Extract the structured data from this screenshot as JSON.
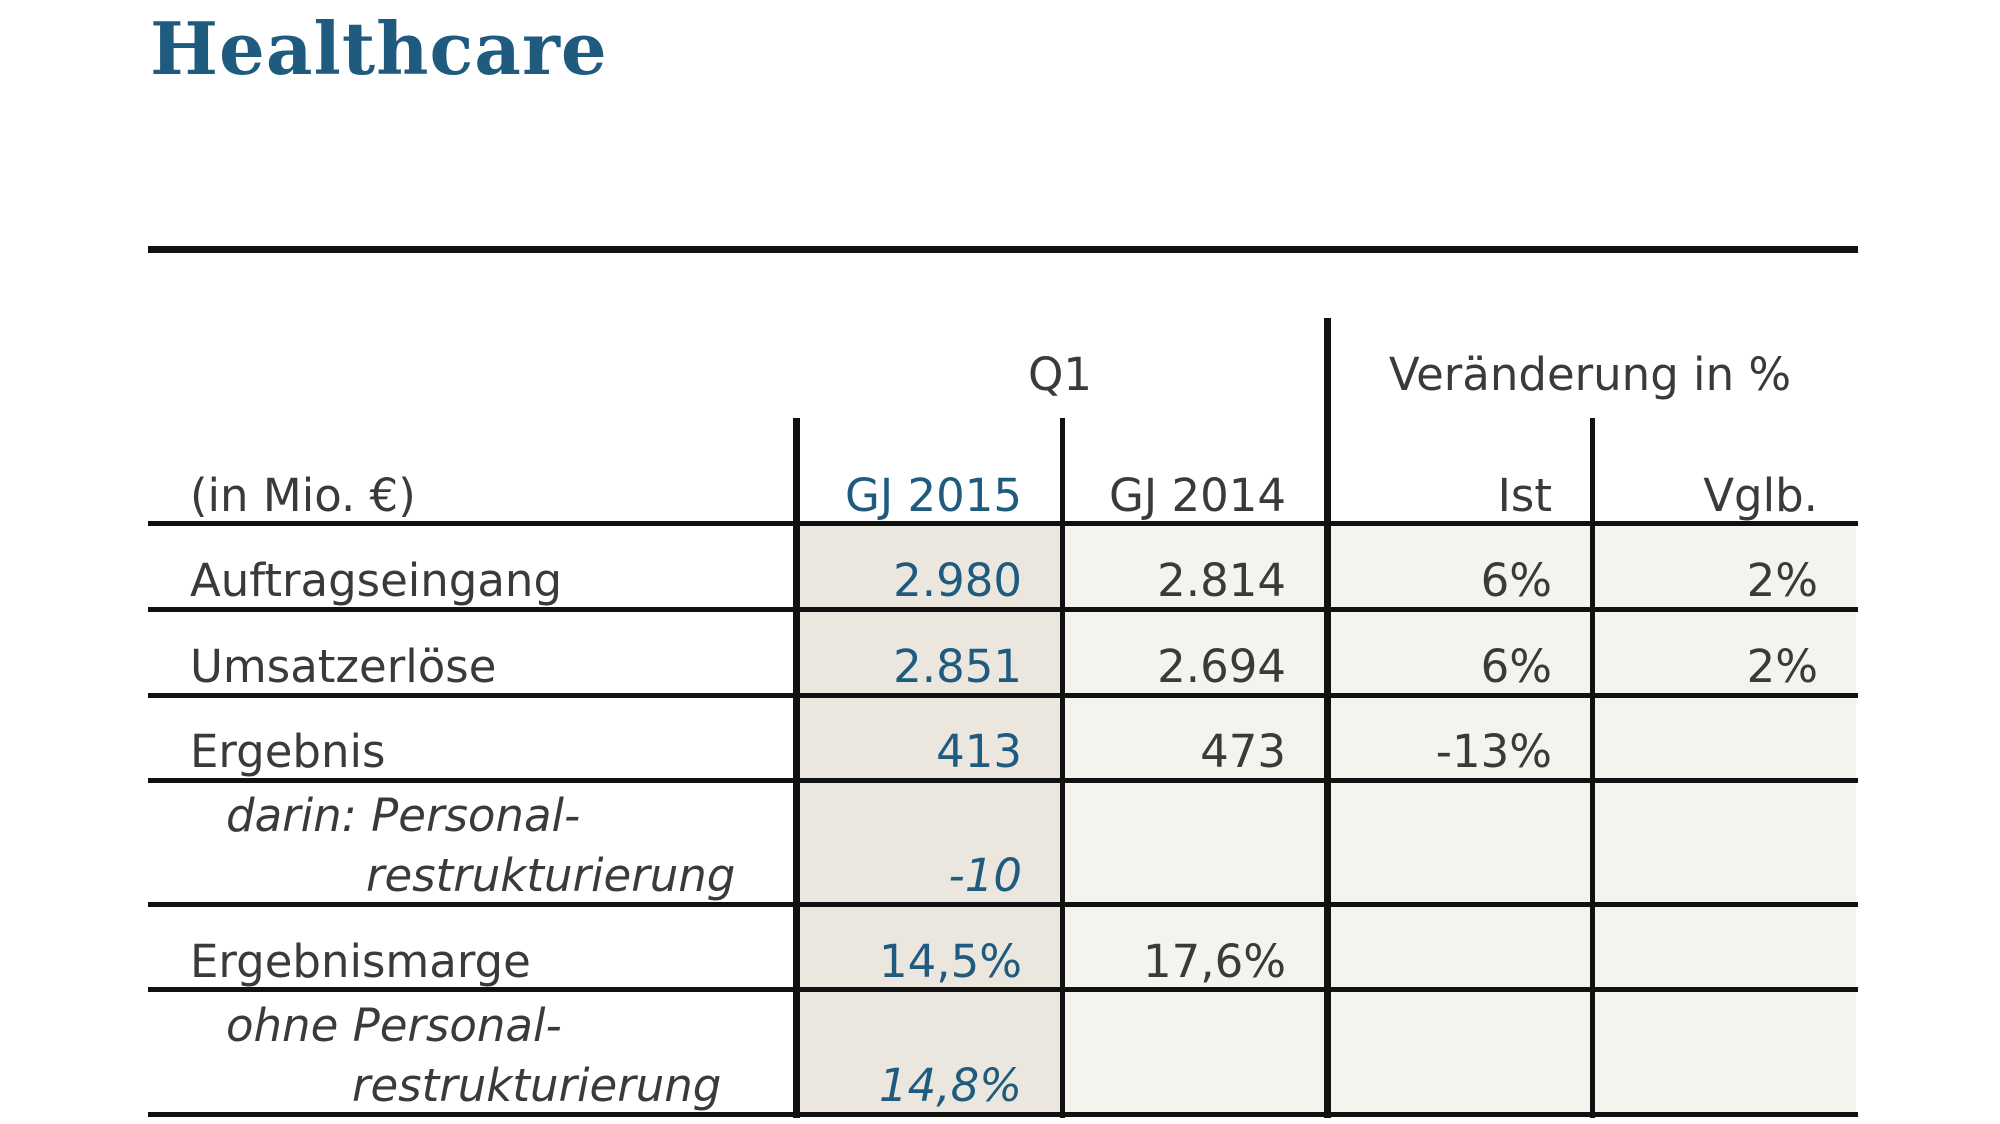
{
  "title": "Healthcare",
  "table": {
    "header_group": {
      "q1": "Q1",
      "change": "Veränderung in %"
    },
    "unit_label": "(in Mio. €)",
    "columns": [
      "GJ 2015",
      "GJ 2014",
      "Ist",
      "Vglb."
    ],
    "rows": [
      {
        "label": "Auftragseingang",
        "values": [
          "2.980",
          "2.814",
          "6%",
          "2%"
        ]
      },
      {
        "label": "Umsatzerlöse",
        "values": [
          "2.851",
          "2.694",
          "6%",
          "2%"
        ]
      },
      {
        "label": "Ergebnis",
        "values": [
          "413",
          "473",
          "-13%",
          ""
        ]
      },
      {
        "label_line1": "darin: Personal-",
        "label_line2": "restrukturierung",
        "values": [
          "-10",
          "",
          "",
          ""
        ]
      },
      {
        "label": "Ergebnismarge",
        "values": [
          "14,5%",
          "17,6%",
          "",
          ""
        ]
      },
      {
        "label_line1": "ohne Personal-",
        "label_line2": "restrukturierung",
        "values": [
          "14,8%",
          "",
          "",
          ""
        ]
      }
    ]
  },
  "colors": {
    "title": "#1f5b7e",
    "highlight_values": "#1f5b7e",
    "shade": "#f5f3ee",
    "shade_dark": "#ebe7df"
  }
}
